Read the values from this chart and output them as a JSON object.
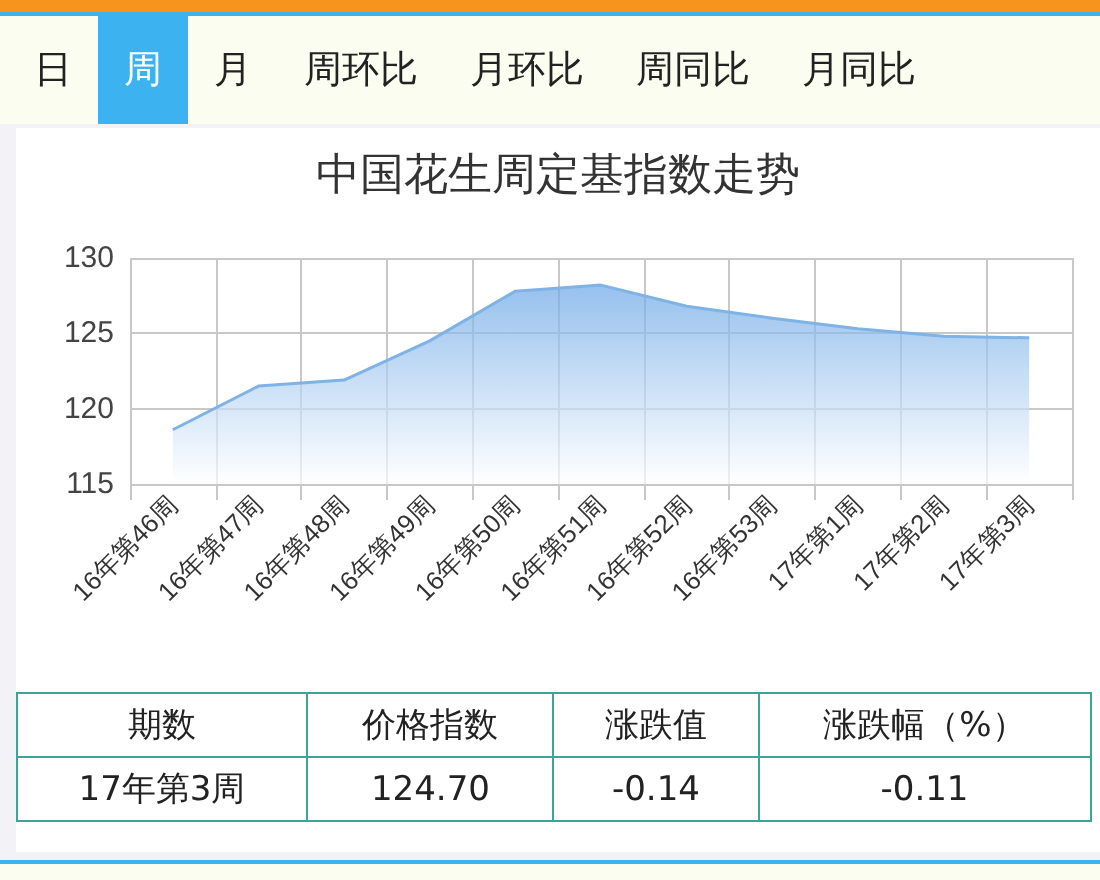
{
  "chart_data": {
    "type": "area",
    "title": "中国花生周定基指数走势",
    "categories": [
      "16年第46周",
      "16年第47周",
      "16年第48周",
      "16年第49周",
      "16年第50周",
      "16年第51周",
      "16年第52周",
      "16年第53周",
      "17年第1周",
      "17年第2周",
      "17年第3周"
    ],
    "values": [
      118.6,
      121.5,
      121.9,
      124.5,
      127.8,
      128.2,
      126.8,
      126.0,
      125.3,
      124.8,
      124.7
    ],
    "color": "#7fb2e5",
    "ylim": [
      115,
      130
    ],
    "yticks": [
      115,
      120,
      125,
      130
    ],
    "grid": true,
    "marker": "none",
    "annotations": [
      "日",
      "周",
      "月",
      "周环比",
      "月环比",
      "周同比",
      "月同比",
      "期数",
      "价格指数",
      "涨跌值",
      "涨跌幅（%）",
      "17年第3周",
      "124.70",
      "-0.14",
      "-0.11"
    ]
  }
}
